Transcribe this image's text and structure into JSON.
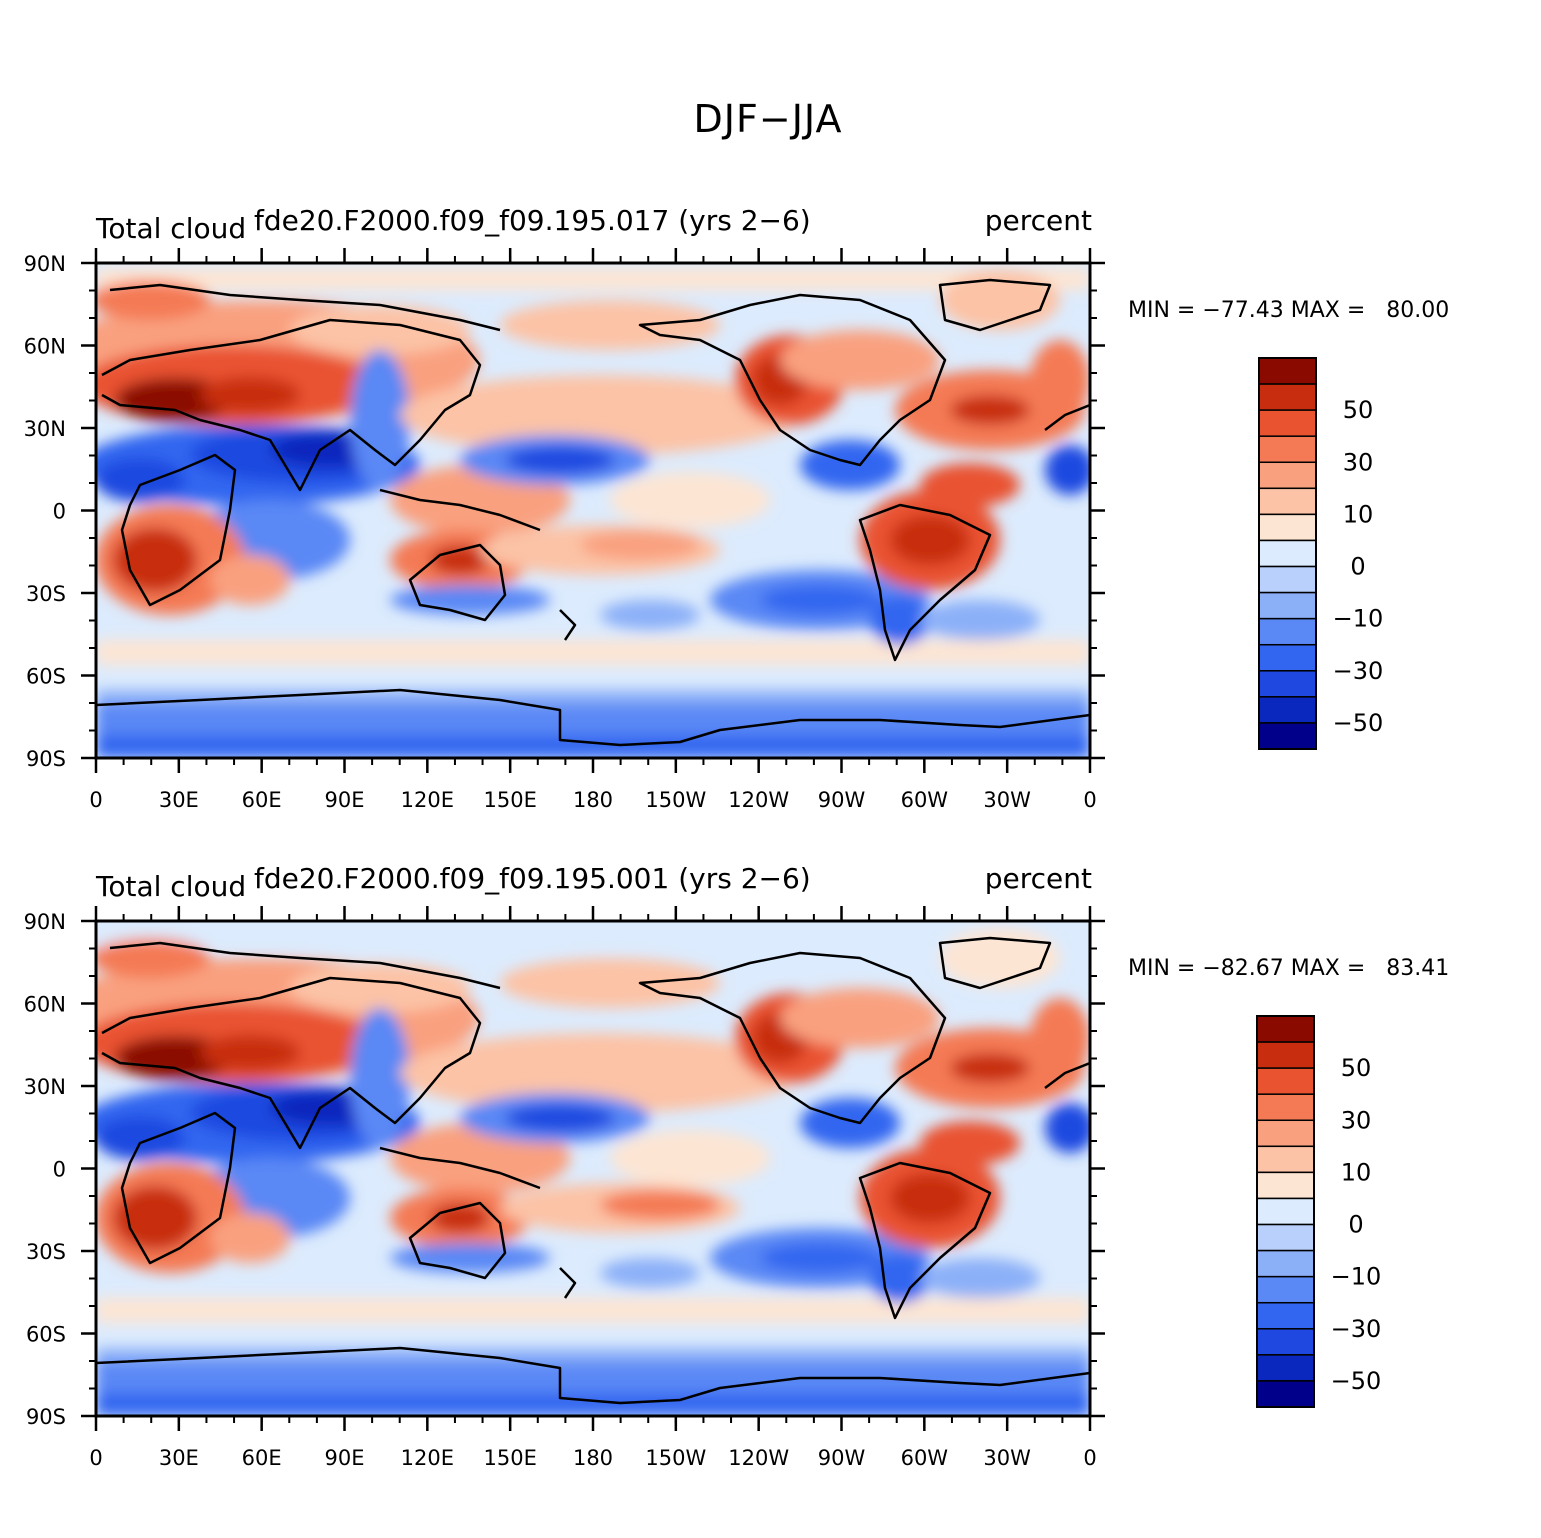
{
  "figure": {
    "main_title": "DJF−JJA"
  },
  "colormap": {
    "levels": [
      -60,
      -50,
      -40,
      -30,
      -20,
      -10,
      0,
      10,
      20,
      30,
      40,
      50,
      60
    ],
    "colors": [
      "#00008b",
      "#0a28be",
      "#1e48e0",
      "#3366f0",
      "#5a88f5",
      "#8cb0f8",
      "#b8d0fb",
      "#dcebfd",
      "#fde5d3",
      "#fcc3a6",
      "#f9a07f",
      "#f47a55",
      "#e95330",
      "#c82d10",
      "#8b0a00"
    ],
    "labels": [
      "50",
      "30",
      "10",
      "0",
      "−10",
      "−30",
      "−50"
    ]
  },
  "axes": {
    "lon_ticks": [
      "0",
      "30E",
      "60E",
      "90E",
      "120E",
      "150E",
      "180",
      "150W",
      "120W",
      "90W",
      "60W",
      "30W",
      "0"
    ],
    "lat_ticks": [
      "90N",
      "60N",
      "30N",
      "0",
      "30S",
      "60S",
      "90S"
    ]
  },
  "panels": [
    {
      "left_label": "Total cloud",
      "center_label": "fde20.F2000.f09_f09.195.017 (yrs 2−6)",
      "right_label": "percent",
      "min_max": "MIN = −77.43 MAX =   80.00"
    },
    {
      "left_label": "Total cloud",
      "center_label": "fde20.F2000.f09_f09.195.001 (yrs 2−6)",
      "right_label": "percent",
      "min_max": "MIN = −82.67 MAX =   83.41"
    }
  ]
}
